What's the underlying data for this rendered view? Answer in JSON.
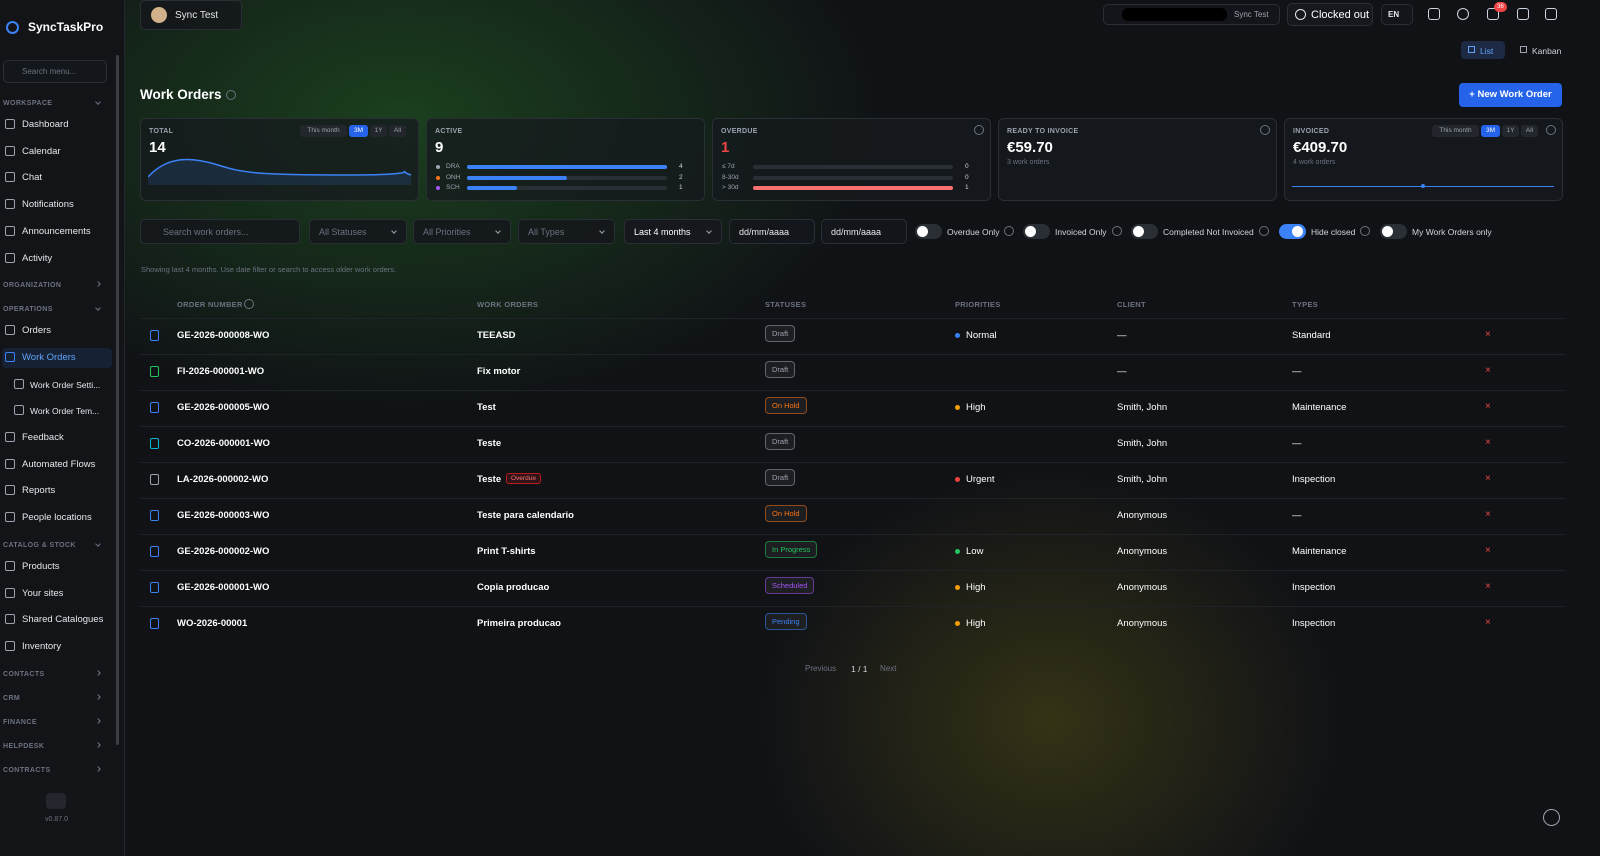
{
  "topbar": {
    "workspace": "Sync Test",
    "account": "Sync Test",
    "clock": "Clocked out",
    "lang": "EN",
    "badge": "36"
  },
  "sidebar": {
    "brand": "SyncTaskPro",
    "search": "Search menu...",
    "version": "v0.87.0",
    "sections": [
      {
        "title": "WORKSPACE",
        "items": [
          {
            "label": "Dashboard"
          },
          {
            "label": "Calendar"
          },
          {
            "label": "Chat"
          },
          {
            "label": "Notifications"
          },
          {
            "label": "Announcements"
          },
          {
            "label": "Activity"
          }
        ]
      },
      {
        "title": "ORGANIZATION",
        "items": []
      },
      {
        "title": "OPERATIONS",
        "items": [
          {
            "label": "Orders"
          },
          {
            "label": "Work Orders",
            "active": true
          },
          {
            "label": "Work Order Setti...",
            "sub": true
          },
          {
            "label": "Work Order Tem...",
            "sub": true
          },
          {
            "label": "Feedback"
          },
          {
            "label": "Automated Flows"
          },
          {
            "label": "Reports"
          },
          {
            "label": "People locations"
          }
        ]
      },
      {
        "title": "CATALOG & STOCK",
        "items": [
          {
            "label": "Products"
          },
          {
            "label": "Your sites"
          },
          {
            "label": "Shared Catalogues"
          },
          {
            "label": "Inventory"
          }
        ]
      },
      {
        "title": "CONTACTS",
        "items": []
      },
      {
        "title": "CRM",
        "items": []
      },
      {
        "title": "FINANCE",
        "items": []
      },
      {
        "title": "HELPDESK",
        "items": []
      },
      {
        "title": "CONTRACTS",
        "items": []
      }
    ]
  },
  "views": [
    {
      "label": "List",
      "active": true
    },
    {
      "label": "Kanban"
    }
  ],
  "page": {
    "title": "Work Orders",
    "new_button": "+ New Work Order"
  },
  "cards": {
    "total": {
      "label": "TOTAL",
      "value": 14,
      "ranges": [
        "This month",
        "3M",
        "1Y",
        "All"
      ],
      "active_range": 1
    },
    "active": {
      "label": "ACTIVE",
      "value": 9,
      "rows": [
        {
          "name": "DRA",
          "value": 4,
          "dot": "#9ca3af"
        },
        {
          "name": "ONH",
          "value": 2,
          "dot": "#f97316"
        },
        {
          "name": "SCH",
          "value": 1,
          "dot": "#a855f7"
        }
      ],
      "bar_color": "#3b82f6"
    },
    "overdue": {
      "label": "OVERDUE",
      "value": 1,
      "rows": [
        {
          "name": "≤ 7d",
          "value": 0
        },
        {
          "name": "8-30d",
          "value": 0
        },
        {
          "name": "> 30d",
          "value": 1
        }
      ],
      "bar_color": "#f87171"
    },
    "ready": {
      "label": "READY TO INVOICE",
      "value": "€59.70",
      "note": "3 work orders"
    },
    "invoiced": {
      "label": "INVOICED",
      "value": "€409.70",
      "note": "4 work orders",
      "ranges": [
        "This month",
        "3M",
        "1Y",
        "All"
      ],
      "active_range": 1
    }
  },
  "filters": {
    "search": "Search work orders...",
    "selects": [
      "All Statuses",
      "All Priorities",
      "All Types",
      "Last 4 months"
    ],
    "dates": [
      "dd/mm/aaaa",
      "dd/mm/aaaa"
    ],
    "toggles": [
      {
        "label": "Overdue Only",
        "on": false
      },
      {
        "label": "Invoiced Only",
        "on": false
      },
      {
        "label": "Completed Not Invoiced",
        "on": false
      },
      {
        "label": "Hide closed",
        "on": true
      },
      {
        "label": "My Work Orders only",
        "on": false
      }
    ],
    "note": "Showing last 4 months. Use date filter or search to access older work orders."
  },
  "table": {
    "headers": [
      "ORDER NUMBER",
      "WORK ORDERS",
      "STATUSES",
      "PRIORITIES",
      "CLIENT",
      "TYPES"
    ],
    "rows": [
      {
        "order": "GE-2026-000008-WO",
        "title": "TEEASD",
        "status": "Draft",
        "status_color": "#9ca3af",
        "priority": "Normal",
        "priority_color": "#3b82f6",
        "client": "—",
        "type": "Standard",
        "icon_color": "#3b82f6"
      },
      {
        "order": "FI-2026-000001-WO",
        "title": "Fix motor",
        "status": "Draft",
        "status_color": "#9ca3af",
        "priority": null,
        "client": "—",
        "type": "—",
        "icon_color": "#22c55e"
      },
      {
        "order": "GE-2026-000005-WO",
        "title": "Test",
        "status": "On Hold",
        "status_color": "#f97316",
        "priority": "High",
        "priority_color": "#f59e0b",
        "client": "Smith, John",
        "type": "Maintenance",
        "icon_color": "#3b82f6"
      },
      {
        "order": "CO-2026-000001-WO",
        "title": "Teste",
        "status": "Draft",
        "status_color": "#9ca3af",
        "priority": null,
        "client": "Smith, John",
        "type": "—",
        "icon_color": "#06b6d4"
      },
      {
        "order": "LA-2026-000002-WO",
        "title": "Teste",
        "tag": "Overdue",
        "status": "Draft",
        "status_color": "#9ca3af",
        "priority": "Urgent",
        "priority_color": "#ef4444",
        "client": "Smith, John",
        "type": "Inspection",
        "icon_color": "#9ca3af"
      },
      {
        "order": "GE-2026-000003-WO",
        "title": "Teste para calendario",
        "status": "On Hold",
        "status_color": "#f97316",
        "priority": null,
        "client": "Anonymous",
        "type": "—",
        "icon_color": "#3b82f6"
      },
      {
        "order": "GE-2026-000002-WO",
        "title": "Print T-shirts",
        "status": "In Progress",
        "status_color": "#22c55e",
        "priority": "Low",
        "priority_color": "#22c55e",
        "client": "Anonymous",
        "type": "Maintenance",
        "icon_color": "#3b82f6"
      },
      {
        "order": "GE-2026-000001-WO",
        "title": "Copia producao",
        "status": "Scheduled",
        "status_color": "#a855f7",
        "priority": "High",
        "priority_color": "#f59e0b",
        "client": "Anonymous",
        "type": "Inspection",
        "icon_color": "#3b82f6"
      },
      {
        "order": "WO-2026-00001",
        "title": "Primeira producao",
        "status": "Pending",
        "status_color": "#3b82f6",
        "priority": "High",
        "priority_color": "#f59e0b",
        "client": "Anonymous",
        "type": "Inspection",
        "icon_color": "#3b82f6"
      }
    ]
  },
  "pagination": {
    "previous": "Previous",
    "page": "1 / 1",
    "next": "Next"
  }
}
